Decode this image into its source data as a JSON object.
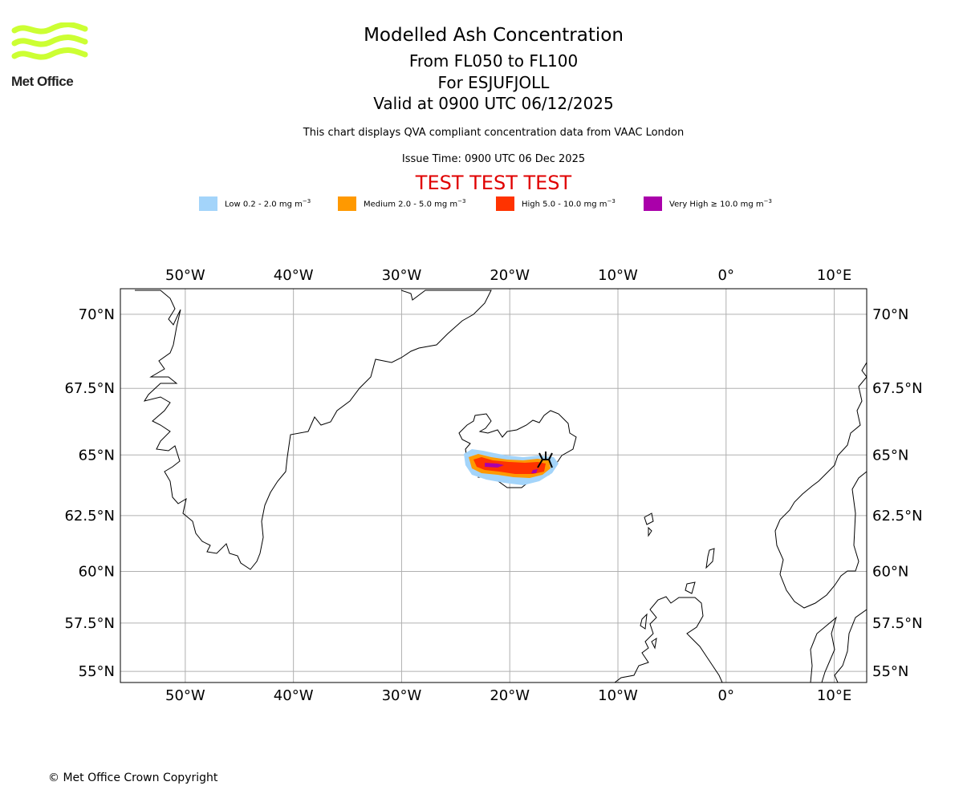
{
  "header": {
    "logo_text": "Met Office",
    "title": "Modelled Ash Concentration",
    "levels": "From FL050 to FL100",
    "volcano": "For ESJUFJOLL",
    "valid": "Valid at 0900 UTC 06/12/2025",
    "compliance": "This chart displays QVA compliant concentration data from VAAC London",
    "issue_time": "Issue Time: 0900 UTC 06 Dec 2025",
    "test_banner": "TEST TEST TEST"
  },
  "legend": [
    {
      "label": "Low 0.2 - 2.0 mg m",
      "color": "#a3d4fa"
    },
    {
      "label": "Medium 2.0 - 5.0 mg m",
      "color": "#ff9900"
    },
    {
      "label": "High 5.0 - 10.0 mg m",
      "color": "#ff3300"
    },
    {
      "label": "Very High ≥ 10.0 mg m",
      "color": "#aa00aa"
    }
  ],
  "map": {
    "lon_range": [
      -56,
      13
    ],
    "lat_range": [
      54.4,
      70.8
    ],
    "longitudes": [
      -50,
      -40,
      -30,
      -20,
      -10,
      0,
      10
    ],
    "latitudes": [
      70,
      67.5,
      65,
      62.5,
      60,
      57.5,
      55
    ],
    "lon_labels": [
      "50°W",
      "40°W",
      "30°W",
      "20°W",
      "10°W",
      "0°",
      "10°E"
    ],
    "lat_labels": [
      "70°N",
      "67.5°N",
      "65°N",
      "62.5°N",
      "60°N",
      "57.5°N",
      "55°N"
    ],
    "gridline_color": "#b0b0b0",
    "volcano_marker": {
      "lon": -16.65,
      "lat": 64.3
    }
  },
  "footer": {
    "copyright": "© Met Office Crown Copyright"
  }
}
